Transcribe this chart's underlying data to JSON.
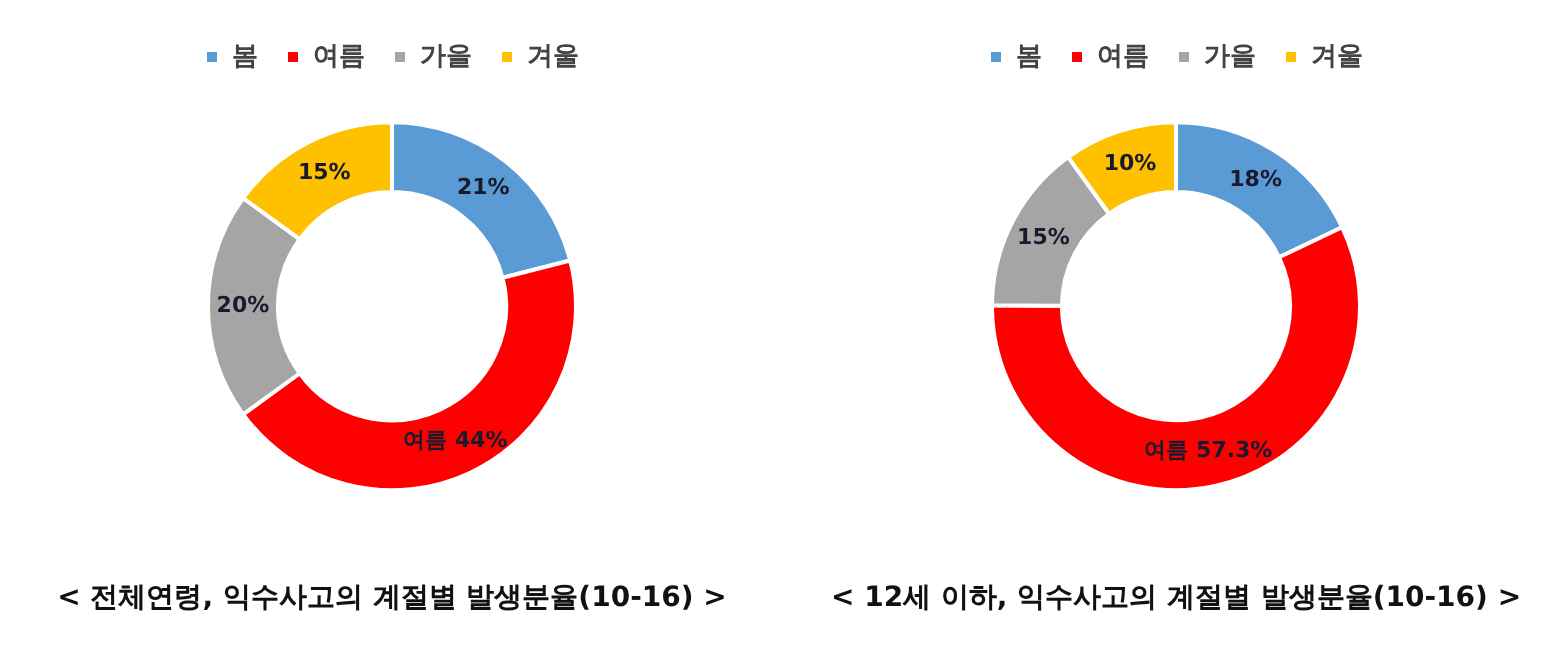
{
  "chart_data": [
    {
      "type": "donut",
      "title": "< 전체연령, 익수사고의 계절별 발생분율(10-16) >",
      "categories": [
        "봄",
        "여름",
        "가을",
        "겨울"
      ],
      "values": [
        21,
        44,
        20,
        15
      ],
      "colors": [
        "#5b9bd5",
        "#ff0000",
        "#a5a5a5",
        "#ffc000"
      ],
      "value_labels": [
        "21%",
        "여름 44%",
        "20%",
        "15%"
      ],
      "legend": "top"
    },
    {
      "type": "donut",
      "title": "< 12세 이하, 익수사고의 계절별 발생분율(10-16) >",
      "categories": [
        "봄",
        "여름",
        "가을",
        "겨울"
      ],
      "values": [
        18,
        57.3,
        15,
        10
      ],
      "colors": [
        "#5b9bd5",
        "#ff0000",
        "#a5a5a5",
        "#ffc000"
      ],
      "value_labels": [
        "18%",
        "여름 57.3%",
        "15%",
        "10%"
      ],
      "legend": "top"
    }
  ]
}
